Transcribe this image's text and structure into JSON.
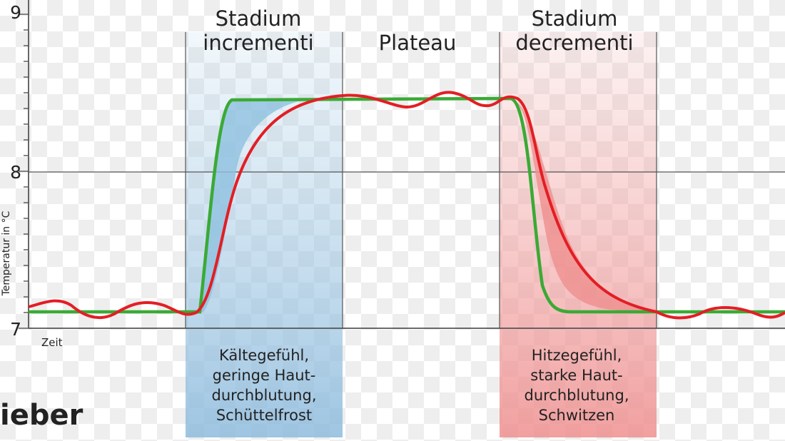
{
  "axis": {
    "ticks": [
      "9",
      "8",
      "7"
    ],
    "y_label": "Temperatur in °C",
    "x_label": "Zeit"
  },
  "phases": [
    {
      "title": [
        "Stadium",
        "incrementi"
      ],
      "description": [
        "Kältegefühl,",
        "geringe Haut-",
        "durchblutung,",
        "Schüttelfrost"
      ]
    },
    {
      "title": [
        "Plateau"
      ],
      "description": []
    },
    {
      "title": [
        "Stadium",
        "decrementi"
      ],
      "description": [
        "Hitzegefühl,",
        "starke Haut-",
        "durchblutung,",
        "Schwitzen"
      ]
    }
  ],
  "caption": "ieber"
}
